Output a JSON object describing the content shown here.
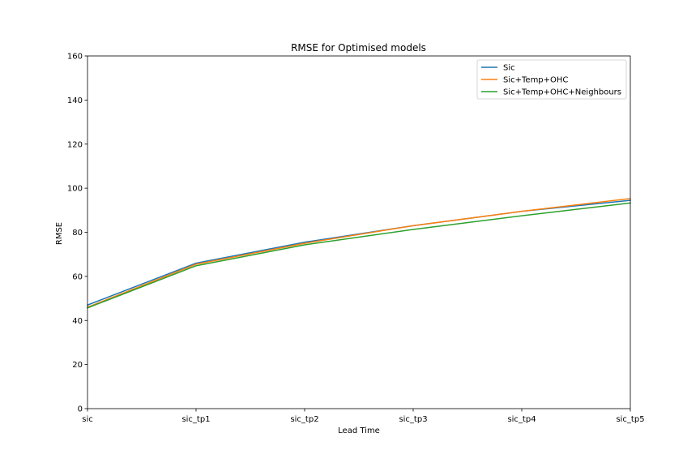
{
  "chart_data": {
    "type": "line",
    "title": "RMSE for Optimised models",
    "xlabel": "Lead Time",
    "ylabel": "RMSE",
    "categories": [
      "sic",
      "sic_tp1",
      "sic_tp2",
      "sic_tp3",
      "sic_tp4",
      "sic_tp5"
    ],
    "ylim": [
      0,
      160
    ],
    "yticks": [
      "0",
      "20",
      "40",
      "60",
      "80",
      "100",
      "120",
      "140",
      "160"
    ],
    "grid": false,
    "legend_position": "top-right",
    "series": [
      {
        "name": "Sic",
        "color": "#1f77b4",
        "values": [
          47.0,
          66.0,
          75.5,
          83.0,
          89.5,
          94.5
        ]
      },
      {
        "name": "Sic+Temp+OHC",
        "color": "#ff7f0e",
        "values": [
          46.0,
          65.5,
          75.0,
          83.0,
          89.5,
          95.3
        ]
      },
      {
        "name": "Sic+Temp+OHC+Neighbours",
        "color": "#2ca02c",
        "values": [
          45.7,
          64.8,
          74.3,
          81.3,
          87.5,
          93.3
        ]
      }
    ]
  }
}
